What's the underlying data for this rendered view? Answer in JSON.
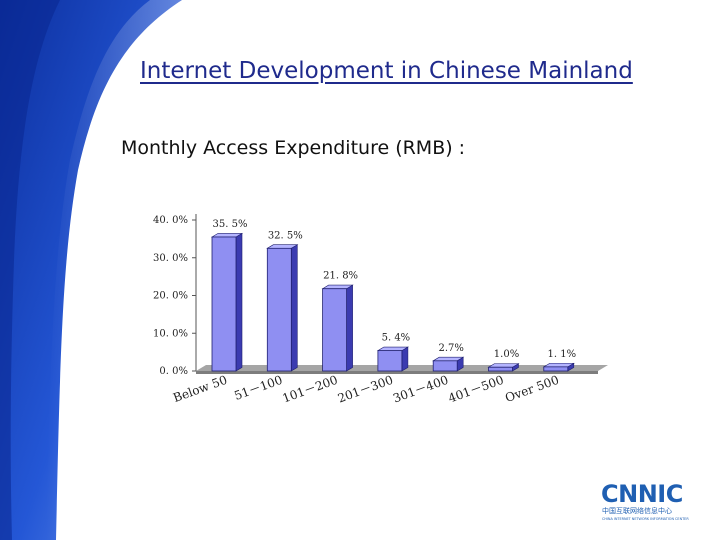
{
  "slide": {
    "title": "Internet Development in Chinese Mainland",
    "subtitle": "Monthly Access Expenditure (RMB) :"
  },
  "logo": {
    "brand": "CNNIC",
    "chinese_name": "中国互联网络信息中心",
    "english_name": "CHINA INTERNET NETWORK INFORMATION CENTER"
  },
  "colors": {
    "bar_front": "#8f8ff2",
    "bar_side": "#3b3bb0",
    "bar_top": "#b4b4ff",
    "floor": "#a5a5a5",
    "background_blue": "#1b47c6",
    "logo_blue": "#1f5fb2"
  },
  "chart_data": {
    "type": "bar",
    "categories": [
      "Below 50",
      "51－100",
      "101－200",
      "201－300",
      "301－400",
      "401－500",
      "Over 500"
    ],
    "values": [
      35.5,
      32.5,
      21.8,
      5.4,
      2.7,
      1.0,
      1.1
    ],
    "data_labels": [
      "35. 5%",
      "32. 5%",
      "21. 8%",
      "5. 4%",
      "2.7%",
      "1.0%",
      "1. 1%"
    ],
    "y_ticks": [
      "0. 0%",
      "10. 0%",
      "20. 0%",
      "30. 0%",
      "40. 0%"
    ],
    "y_tick_values": [
      0,
      10,
      20,
      30,
      40
    ],
    "ylim": [
      0,
      40
    ],
    "unit": "%",
    "grid": false,
    "style": "3d"
  }
}
